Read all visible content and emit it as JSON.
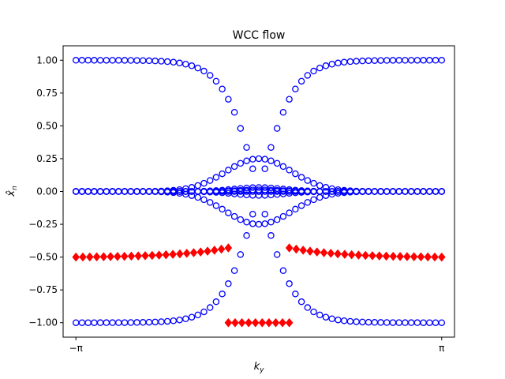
{
  "chart_data": {
    "type": "scatter",
    "title": "WCC flow",
    "xlabel": "k",
    "xlabel_sub": "y",
    "ylabel": "x̂",
    "ylabel_sub": "n",
    "xlim": [
      -3.3615,
      3.3615
    ],
    "ylim": [
      -1.11,
      1.11
    ],
    "grid": false,
    "xticks": [
      {
        "value": -3.14159,
        "label": "−π"
      },
      {
        "value": 3.14159,
        "label": "π"
      }
    ],
    "yticks": [
      {
        "value": -1.0,
        "label": "−1.00"
      },
      {
        "value": -0.75,
        "label": "−0.75"
      },
      {
        "value": -0.5,
        "label": "−0.50"
      },
      {
        "value": -0.25,
        "label": "−0.25"
      },
      {
        "value": 0.0,
        "label": "0.00"
      },
      {
        "value": 0.25,
        "label": "0.25"
      },
      {
        "value": 0.5,
        "label": "0.50"
      },
      {
        "value": 0.75,
        "label": "0.75"
      },
      {
        "value": 1.0,
        "label": "1.00"
      }
    ],
    "series": [
      {
        "marker": "open-circle",
        "color": "#0000ff",
        "k_count": 61,
        "k_range": [
          -3.14159,
          3.14159
        ],
        "bands": [
          {
            "type": "tanh",
            "sign": 1,
            "width": 0.6
          },
          {
            "type": "tanh",
            "sign": -1,
            "width": 0.6
          },
          {
            "type": "bump",
            "amp": 0.25,
            "width": 0.8
          },
          {
            "type": "bump",
            "amp": -0.25,
            "width": 0.8
          },
          {
            "type": "bump",
            "amp": 0.03,
            "width": 0.6
          },
          {
            "type": "bump",
            "amp": -0.03,
            "width": 0.6
          },
          {
            "type": "bump",
            "amp": 0.012,
            "width": 0.5
          },
          {
            "type": "flat",
            "value": 0.0
          },
          {
            "type": "flat",
            "value": 0.0
          }
        ]
      },
      {
        "marker": "filled-diamond",
        "color": "#ff0000",
        "groups": [
          {
            "k_start": -3.14159,
            "k_end": -0.5236,
            "y_start": -0.5,
            "y_end": -0.43,
            "count": 23,
            "curve": "exp"
          },
          {
            "k_start": 0.5236,
            "k_end": 3.14159,
            "y_start": -0.43,
            "y_end": -0.5,
            "count": 23,
            "curve": "exp"
          },
          {
            "k_start": -0.5236,
            "k_end": 0.5236,
            "y_start": -1.0,
            "y_end": -1.0,
            "count": 10,
            "curve": "linear"
          }
        ]
      }
    ]
  }
}
